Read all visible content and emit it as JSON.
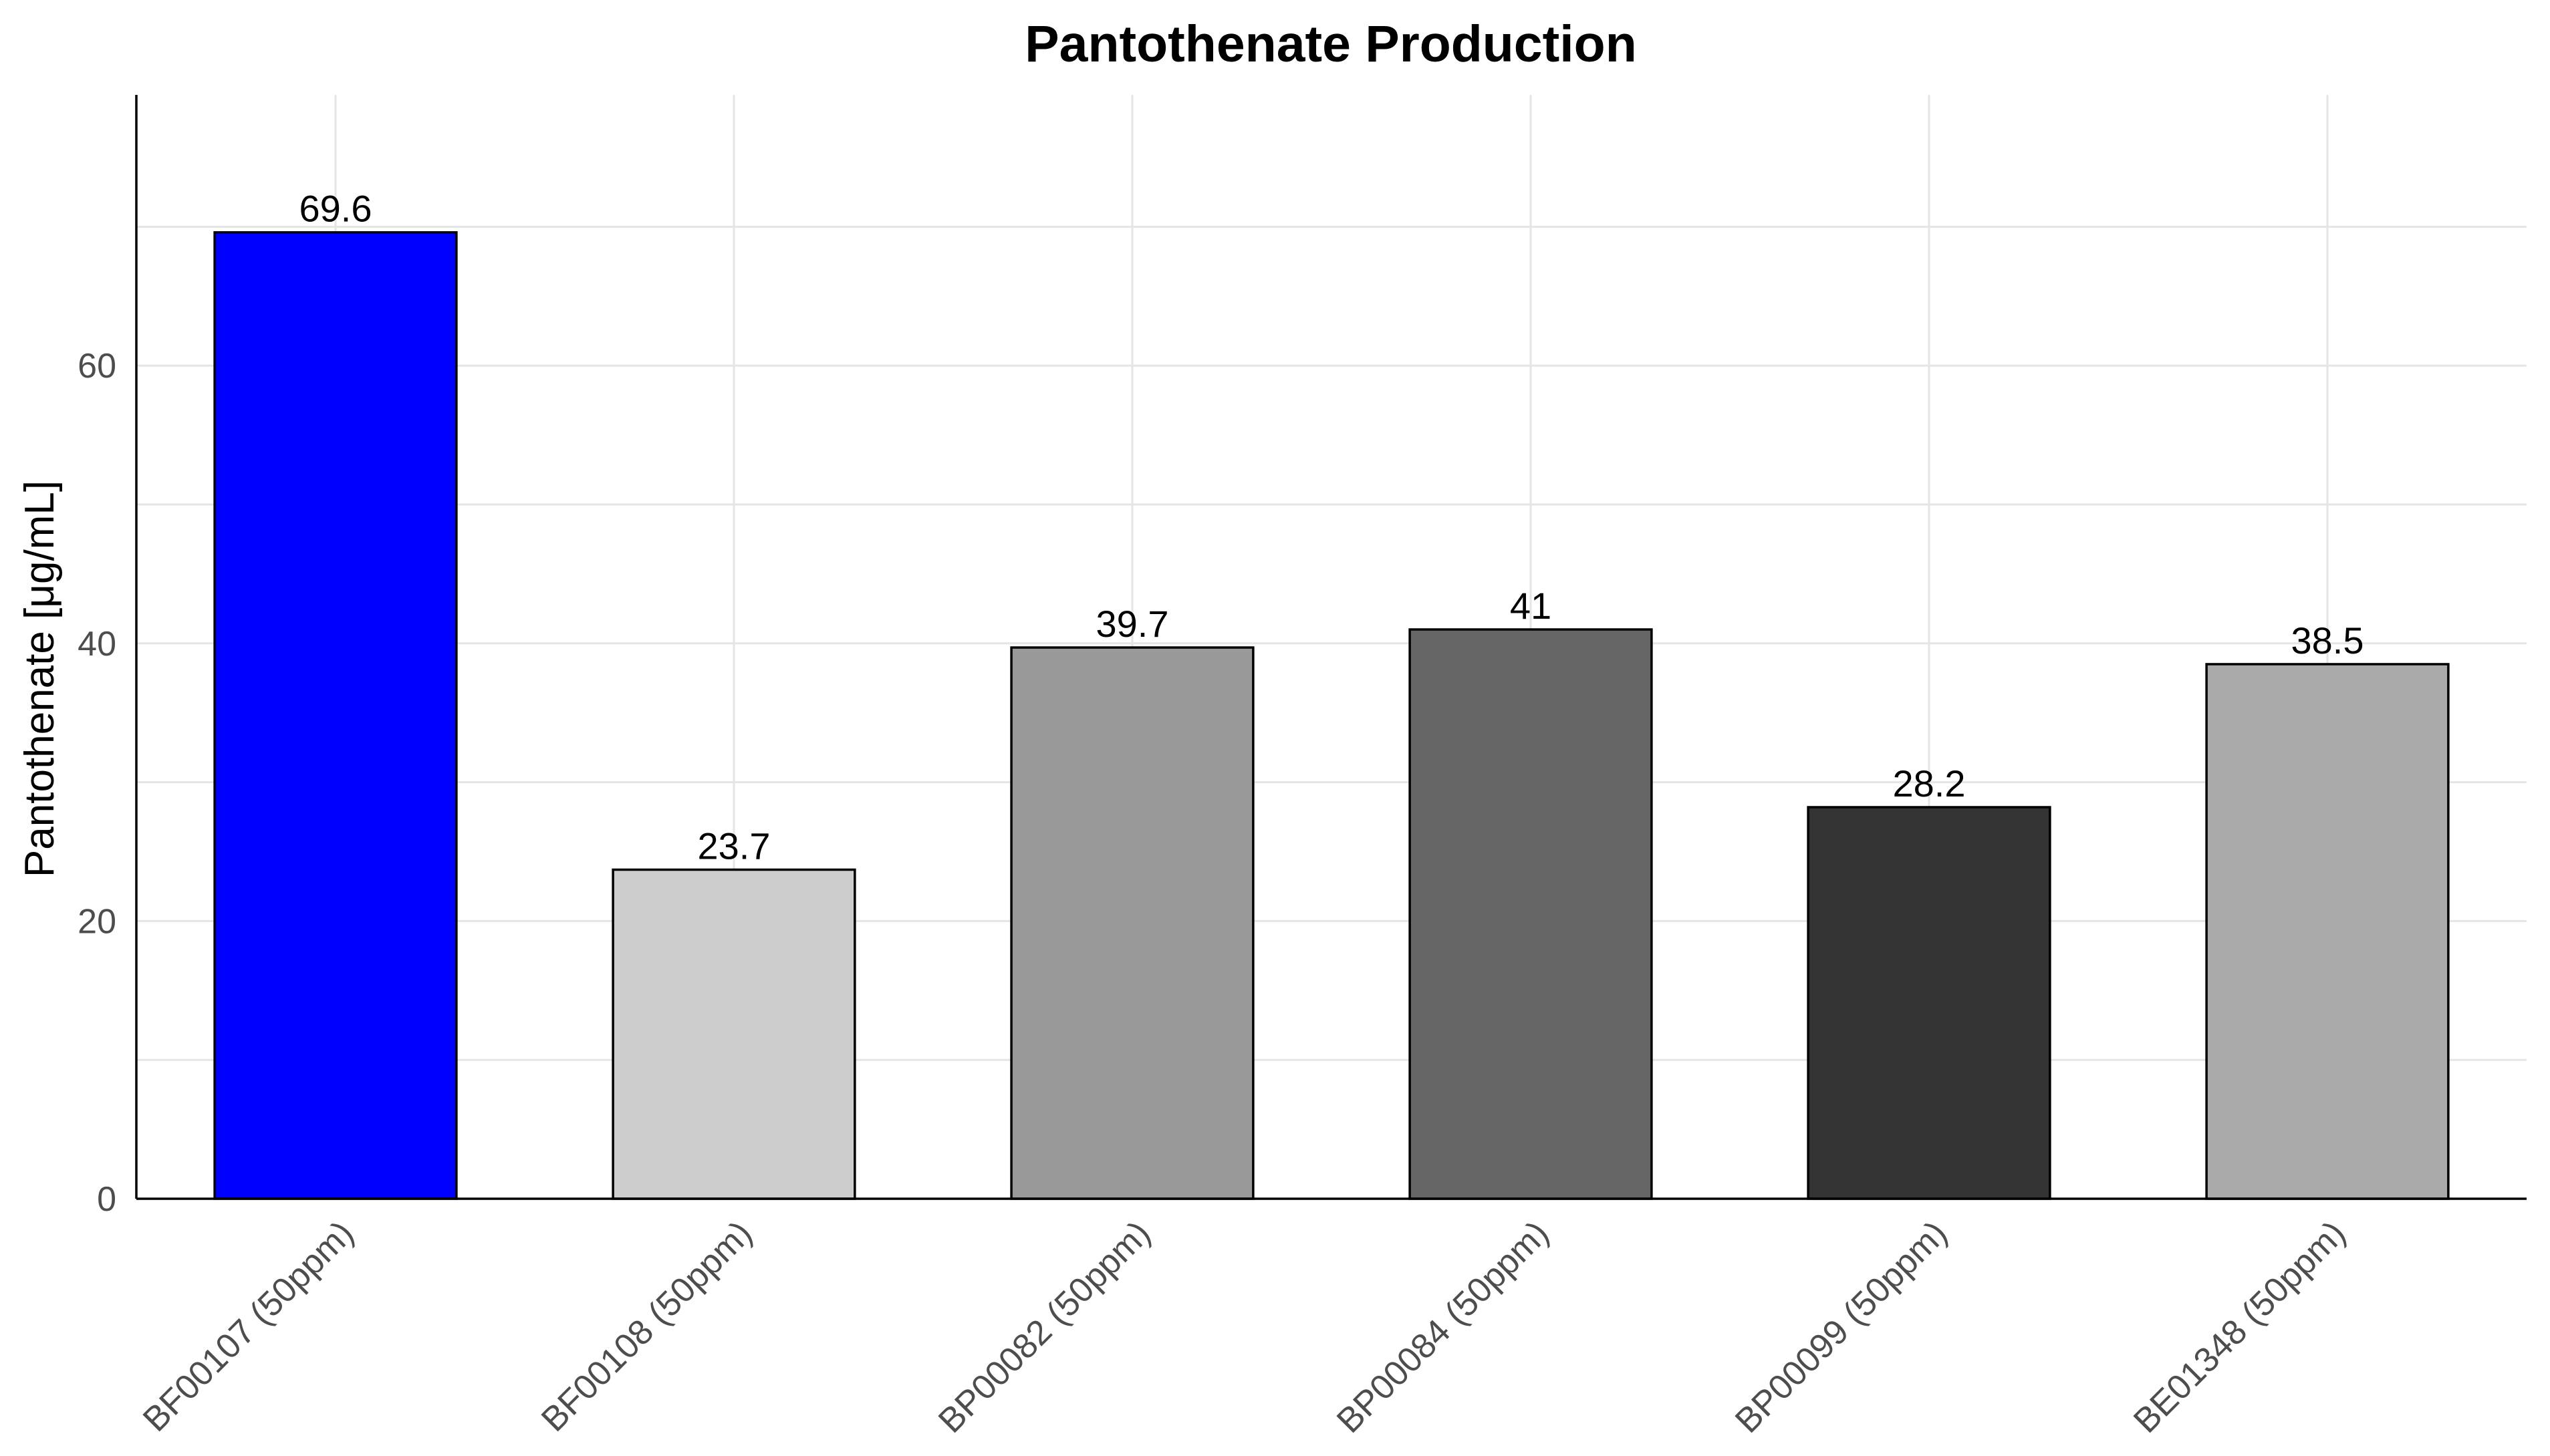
{
  "chart_data": {
    "type": "bar",
    "title": "Pantothenate Production",
    "xlabel": "",
    "ylabel": "Pantothenate [μg/mL]",
    "categories": [
      "BF00107 (50ppm)",
      "BF00108 (50ppm)",
      "BP00082 (50ppm)",
      "BP00084 (50ppm)",
      "BP00099 (50ppm)",
      "BE01348 (50ppm)"
    ],
    "values": [
      69.6,
      23.7,
      39.7,
      41,
      28.2,
      38.5
    ],
    "value_labels": [
      "69.6",
      "23.7",
      "39.7",
      "41",
      "28.2",
      "38.5"
    ],
    "bar_colors": [
      "#0000ff",
      "#cccccc",
      "#999999",
      "#666666",
      "#333333",
      "#aaaaaa"
    ],
    "y_ticks": [
      0,
      20,
      40,
      60
    ],
    "ylim": [
      0,
      79.5
    ],
    "grid": true,
    "legend": "none"
  }
}
